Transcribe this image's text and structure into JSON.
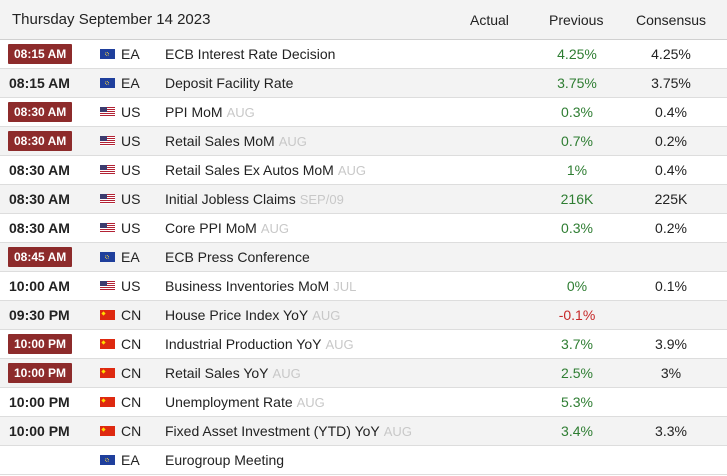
{
  "header": {
    "date": "Thursday September 14 2023",
    "actual": "Actual",
    "previous": "Previous",
    "consensus": "Consensus"
  },
  "colors": {
    "badge": "#8d2b2b",
    "positive": "#2e7d32",
    "negative": "#c62828"
  },
  "rows": [
    {
      "time": "08:15 AM",
      "badge": true,
      "flag": "eu-flag-icon",
      "country": "EA",
      "event": "ECB Interest Rate Decision",
      "period": "",
      "previous": "4.25%",
      "consensus": "4.25%"
    },
    {
      "time": "08:15 AM",
      "badge": false,
      "flag": "eu-flag-icon",
      "country": "EA",
      "event": "Deposit Facility Rate",
      "period": "",
      "previous": "3.75%",
      "consensus": "3.75%"
    },
    {
      "time": "08:30 AM",
      "badge": true,
      "flag": "us-flag-icon",
      "country": "US",
      "event": "PPI MoM",
      "period": "AUG",
      "previous": "0.3%",
      "consensus": "0.4%"
    },
    {
      "time": "08:30 AM",
      "badge": true,
      "flag": "us-flag-icon",
      "country": "US",
      "event": "Retail Sales MoM",
      "period": "AUG",
      "previous": "0.7%",
      "consensus": "0.2%"
    },
    {
      "time": "08:30 AM",
      "badge": false,
      "flag": "us-flag-icon",
      "country": "US",
      "event": "Retail Sales Ex Autos MoM",
      "period": "AUG",
      "previous": "1%",
      "consensus": "0.4%"
    },
    {
      "time": "08:30 AM",
      "badge": false,
      "flag": "us-flag-icon",
      "country": "US",
      "event": "Initial Jobless Claims",
      "period": "SEP/09",
      "previous": "216K",
      "consensus": "225K"
    },
    {
      "time": "08:30 AM",
      "badge": false,
      "flag": "us-flag-icon",
      "country": "US",
      "event": "Core PPI MoM",
      "period": "AUG",
      "previous": "0.3%",
      "consensus": "0.2%"
    },
    {
      "time": "08:45 AM",
      "badge": true,
      "flag": "eu-flag-icon",
      "country": "EA",
      "event": "ECB Press Conference",
      "period": "",
      "previous": "",
      "consensus": ""
    },
    {
      "time": "10:00 AM",
      "badge": false,
      "flag": "us-flag-icon",
      "country": "US",
      "event": "Business Inventories MoM",
      "period": "JUL",
      "previous": "0%",
      "consensus": "0.1%"
    },
    {
      "time": "09:30 PM",
      "badge": false,
      "flag": "cn-flag-icon",
      "country": "CN",
      "event": "House Price Index YoY",
      "period": "AUG",
      "previous": "-0.1%",
      "consensus": ""
    },
    {
      "time": "10:00 PM",
      "badge": true,
      "flag": "cn-flag-icon",
      "country": "CN",
      "event": "Industrial Production YoY",
      "period": "AUG",
      "previous": "3.7%",
      "consensus": "3.9%"
    },
    {
      "time": "10:00 PM",
      "badge": true,
      "flag": "cn-flag-icon",
      "country": "CN",
      "event": "Retail Sales YoY",
      "period": "AUG",
      "previous": "2.5%",
      "consensus": "3%"
    },
    {
      "time": "10:00 PM",
      "badge": false,
      "flag": "cn-flag-icon",
      "country": "CN",
      "event": "Unemployment Rate",
      "period": "AUG",
      "previous": "5.3%",
      "consensus": ""
    },
    {
      "time": "10:00 PM",
      "badge": false,
      "flag": "cn-flag-icon",
      "country": "CN",
      "event": "Fixed Asset Investment (YTD) YoY",
      "period": "AUG",
      "previous": "3.4%",
      "consensus": "3.3%"
    },
    {
      "time": "",
      "badge": false,
      "flag": "eu-flag-icon",
      "country": "EA",
      "event": "Eurogroup Meeting",
      "period": "",
      "previous": "",
      "consensus": ""
    }
  ]
}
